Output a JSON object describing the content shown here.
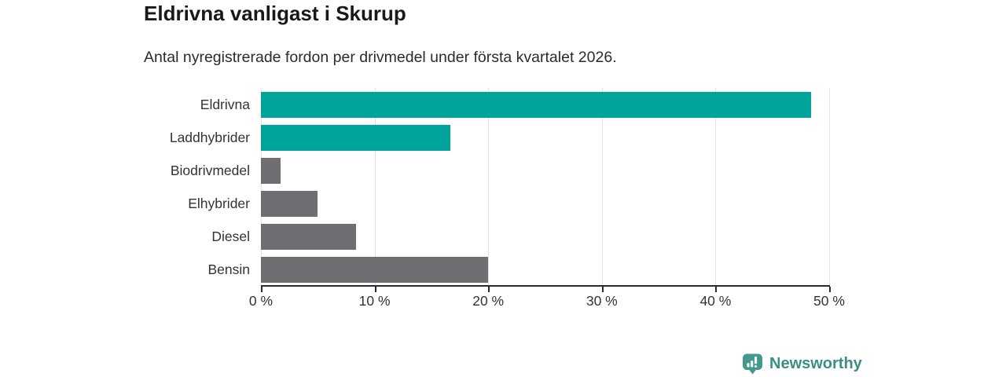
{
  "header": {
    "title": "Eldrivna vanligast i Skurup",
    "subtitle": "Antal nyregistrerade fordon per drivmedel under första kvartalet 2026."
  },
  "chart_data": {
    "type": "bar",
    "orientation": "horizontal",
    "title": "Eldrivna vanligast i Skurup",
    "subtitle": "Antal nyregistrerade fordon per drivmedel under första kvartalet 2026.",
    "categories": [
      "Eldrivna",
      "Laddhybrider",
      "Biodrivmedel",
      "Elhybrider",
      "Diesel",
      "Bensin"
    ],
    "values": [
      48.4,
      16.7,
      1.7,
      5.0,
      8.4,
      20.0
    ],
    "unit": "%",
    "bar_colors": [
      "#00a49b",
      "#00a49b",
      "#6e6e73",
      "#6e6e73",
      "#6e6e73",
      "#6e6e73"
    ],
    "xlim": [
      0,
      50
    ],
    "x_tick_values": [
      0,
      10,
      20,
      30,
      40,
      50
    ],
    "x_tick_labels": [
      "0 %",
      "10 %",
      "20 %",
      "30 %",
      "40 %",
      "50 %"
    ],
    "grid": true,
    "legend": "none"
  },
  "colors": {
    "accent_teal": "#00a49b",
    "neutral_gray": "#6e6e73",
    "gridline": "#e3e3e3",
    "axis": "#2b2b2b",
    "brand_teal": "#3a8e82",
    "logo_fill": "#44998c"
  },
  "footer": {
    "brand": "Newsworthy",
    "logo_icon": "bar-chart-speech-bubble-icon"
  }
}
